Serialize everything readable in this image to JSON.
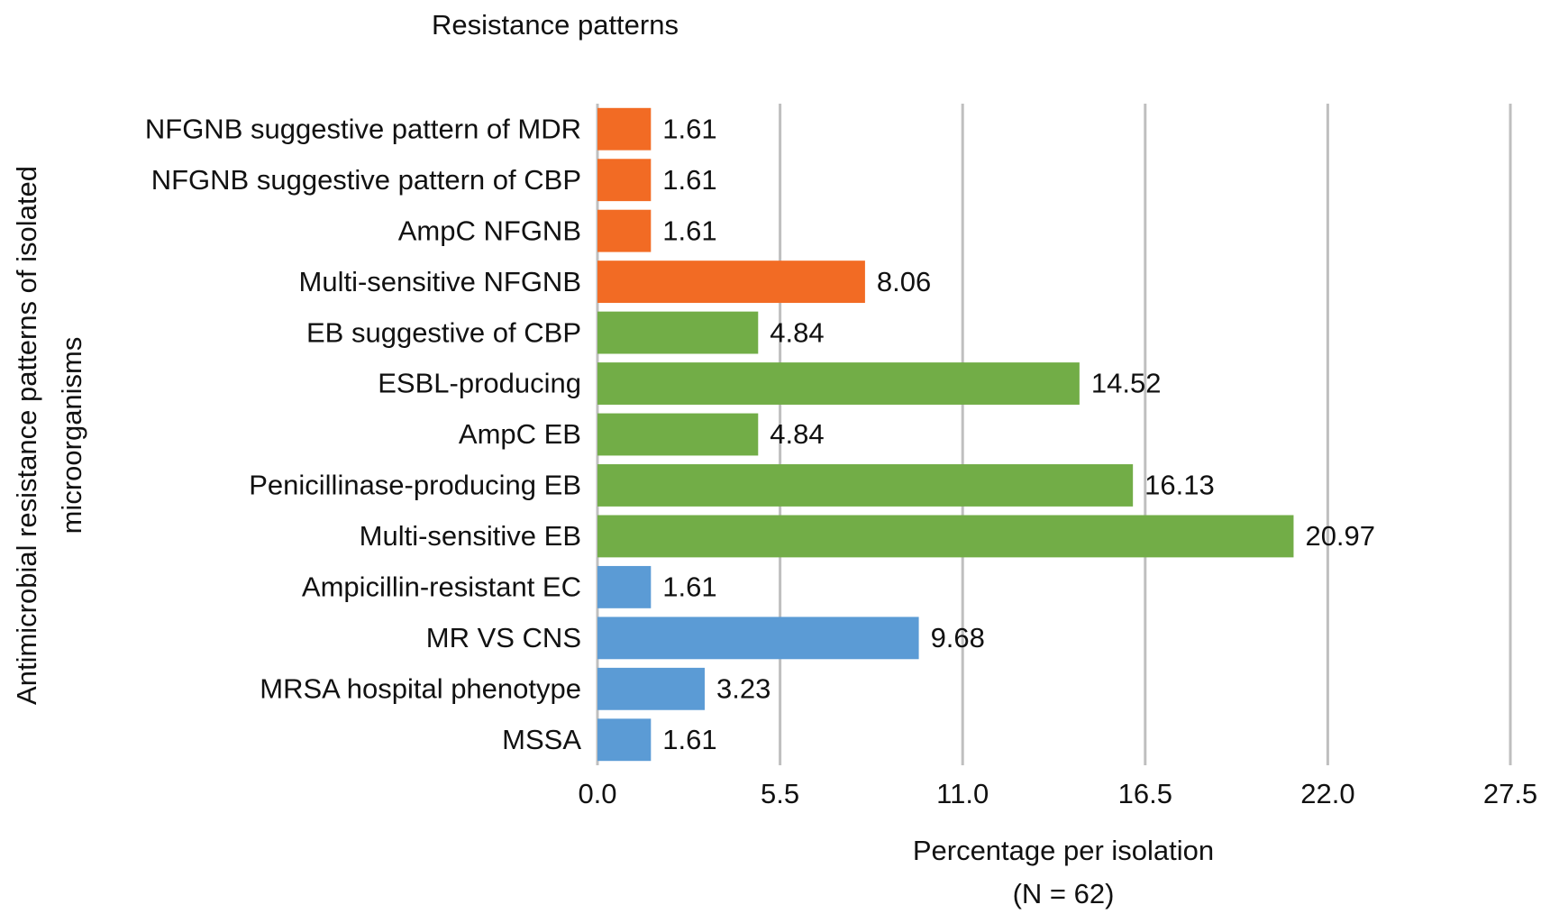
{
  "chart_data": {
    "type": "bar",
    "orientation": "horizontal",
    "title": "Resistance patterns",
    "xlabel": [
      "Percentage per isolation",
      "(N = 62)"
    ],
    "ylabel": [
      "Antimicrobial resistance patterns of isolated",
      "microorganisms"
    ],
    "categories": [
      "NFGNB suggestive pattern of MDR",
      "NFGNB suggestive pattern of CBP",
      "AmpC NFGNB",
      "Multi-sensitive NFGNB",
      "EB suggestive of CBP",
      "ESBL-producing",
      "AmpC EB",
      "Penicillinase-producing EB",
      "Multi-sensitive EB",
      "Ampicillin-resistant EC",
      "MR VS CNS",
      "MRSA hospital phenotype",
      "MSSA"
    ],
    "values": [
      1.61,
      1.61,
      1.61,
      8.06,
      4.84,
      14.52,
      4.84,
      16.13,
      20.97,
      1.61,
      9.68,
      3.23,
      1.61
    ],
    "colors": [
      "#f26b24",
      "#f26b24",
      "#f26b24",
      "#f26b24",
      "#72ad47",
      "#72ad47",
      "#72ad47",
      "#72ad47",
      "#72ad47",
      "#5b9bd5",
      "#5b9bd5",
      "#5b9bd5",
      "#5b9bd5"
    ],
    "xlim": [
      0,
      27.5
    ],
    "xticks": [
      {
        "value": 0,
        "label": "0.0"
      },
      5.5,
      {
        "value": 11,
        "label": "11.0"
      },
      16.5,
      {
        "value": 22,
        "label": "22.0"
      },
      27.5
    ],
    "grid": true
  }
}
